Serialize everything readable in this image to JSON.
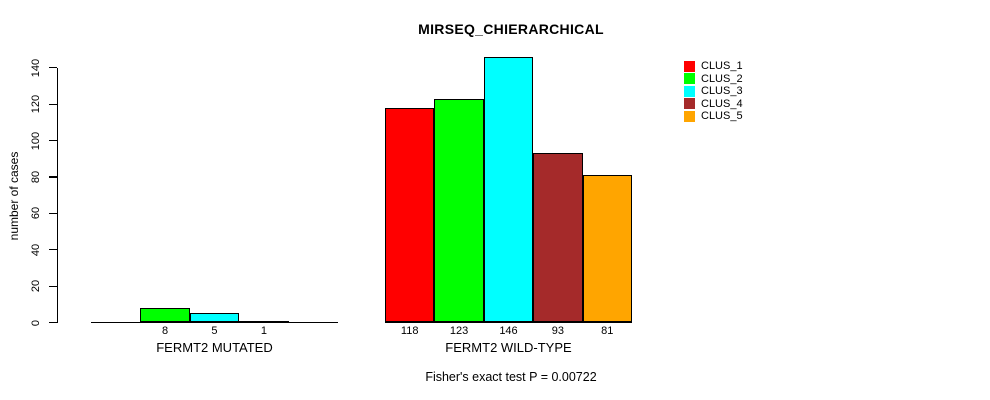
{
  "chart_data": {
    "type": "bar",
    "title": "MIRSEQ_CHIERARCHICAL",
    "ylabel": "number of cases",
    "yticks": [
      0,
      20,
      40,
      60,
      80,
      100,
      120,
      140
    ],
    "ylim": [
      0,
      146
    ],
    "grid": false,
    "legend_position": "top-right",
    "categories": [
      "FERMT2 MUTATED",
      "FERMT2 WILD-TYPE"
    ],
    "series": [
      {
        "name": "CLUS_1",
        "color": "#FF0000",
        "values": [
          0,
          118
        ]
      },
      {
        "name": "CLUS_2",
        "color": "#00FF00",
        "values": [
          8,
          123
        ]
      },
      {
        "name": "CLUS_3",
        "color": "#00FFFF",
        "values": [
          5,
          146
        ]
      },
      {
        "name": "CLUS_4",
        "color": "#A52A2A",
        "values": [
          1,
          93
        ]
      },
      {
        "name": "CLUS_5",
        "color": "#FFA500",
        "values": [
          0,
          81
        ]
      }
    ],
    "annotation": "Fisher's exact test P = 0.00722"
  }
}
